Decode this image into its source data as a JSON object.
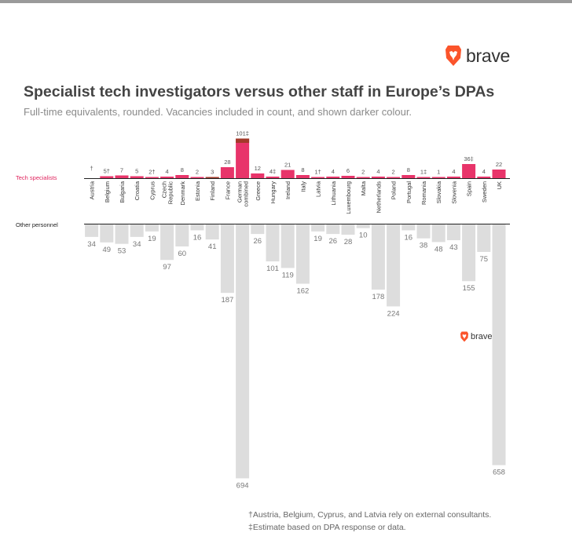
{
  "brand": {
    "name": "brave",
    "logo_color": "#fb542b"
  },
  "header": {
    "title": "Specialist tech investigators versus other staff in Europe’s DPAs",
    "subtitle": "Full-time equivalents, rounded. Vacancies included in count, and shown darker colour."
  },
  "footnotes": {
    "note1": "†Austria, Belgium, Cyprus, and Latvia rely on external consultants.",
    "note2": "‡Estimate based on DPA response or data."
  },
  "chart_data": {
    "type": "bar",
    "title": "Specialist tech investigators versus other staff in Europe’s DPAs",
    "subtitle": "Full-time equivalents, rounded. Vacancies included in count, and shown darker colour.",
    "categories": [
      "Austria",
      "Belgium",
      "Bulgaria",
      "Croatia",
      "Cyprus",
      "Czech Republic",
      "Denmark",
      "Estonia",
      "Finland",
      "France",
      "German combined",
      "Greece",
      "Hungary",
      "Ireland",
      "Italy",
      "Latvia",
      "Lithuania",
      "Luxembourg",
      "Malta",
      "Netherlands",
      "Poland",
      "Portugal",
      "Romania",
      "Slovakia",
      "Slovenia",
      "Spain",
      "Sweden",
      "UK"
    ],
    "series": [
      {
        "name": "Tech specialists",
        "color": "#e8346a",
        "vacancy_color": "#a33a2a",
        "values": [
          0,
          5,
          7,
          5,
          2,
          4,
          8,
          2,
          3,
          28,
          101,
          12,
          4,
          21,
          8,
          1,
          4,
          6,
          2,
          4,
          2,
          8,
          1,
          1,
          4,
          36,
          4,
          22
        ],
        "vacancies": [
          0,
          0,
          0,
          0,
          0,
          0,
          0,
          0,
          1,
          0,
          11,
          0,
          0,
          0,
          0,
          0,
          0,
          0,
          0,
          0,
          0,
          0,
          0,
          0,
          0,
          0,
          0,
          0
        ],
        "labels": [
          "†",
          "5†",
          "7",
          "5",
          "2†",
          "4",
          "8",
          "2",
          "3",
          "28",
          "101‡",
          "12",
          "4‡",
          "21",
          "8",
          "1†",
          "4",
          "6",
          "2",
          "4",
          "2",
          "8",
          "1‡",
          "1",
          "4",
          "36‡",
          "4",
          "22"
        ]
      },
      {
        "name": "Other personnel",
        "color": "#dddddd",
        "values": [
          34,
          49,
          53,
          34,
          19,
          97,
          60,
          16,
          41,
          187,
          694,
          26,
          101,
          119,
          162,
          19,
          26,
          28,
          10,
          178,
          224,
          16,
          38,
          48,
          43,
          155,
          75,
          658
        ],
        "labels": [
          "34",
          "49",
          "53",
          "34",
          "19",
          "97",
          "60",
          "16",
          "41",
          "187",
          "694",
          "26",
          "101",
          "119",
          "162",
          "19",
          "26",
          "28",
          "10",
          "178",
          "224",
          "16",
          "38",
          "48",
          "43",
          "155",
          "75",
          "658"
        ]
      }
    ],
    "category_labels": [
      [
        "Austria"
      ],
      [
        "Belgium"
      ],
      [
        "Bulgaria"
      ],
      [
        "Croatia"
      ],
      [
        "Cyprus"
      ],
      [
        "Czech",
        "Republic"
      ],
      [
        "Denmark"
      ],
      [
        "Estonia"
      ],
      [
        "Finland"
      ],
      [
        "France"
      ],
      [
        "German",
        "combined"
      ],
      [
        "Greece"
      ],
      [
        "Hungary"
      ],
      [
        "Ireland"
      ],
      [
        "Italy"
      ],
      [
        "Latvia"
      ],
      [
        "Lithuania"
      ],
      [
        "Luxembourg"
      ],
      [
        "Malta"
      ],
      [
        "Netherlands"
      ],
      [
        "Poland"
      ],
      [
        "Portugal"
      ],
      [
        "Romania"
      ],
      [
        "Slovakia"
      ],
      [
        "Slovenia"
      ],
      [
        "Spain"
      ],
      [
        "Sweden"
      ],
      [
        "UK"
      ]
    ],
    "row_labels": {
      "top": "Tech specialists",
      "bottom": "Other personnel"
    },
    "colors": {
      "tech_label": "#e0245e",
      "axis": "#222222",
      "value_text": "#555555",
      "other_value_text": "#777777"
    },
    "xlabel": "",
    "ylabel": ""
  }
}
